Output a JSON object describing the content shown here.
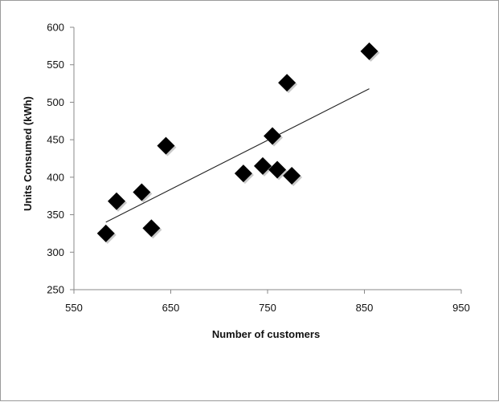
{
  "chart_data": {
    "type": "scatter",
    "title": "",
    "xlabel": "Number of customers",
    "ylabel": "Units Consumed (kWh)",
    "xlim": [
      550,
      950
    ],
    "ylim": [
      250,
      600
    ],
    "xticks": [
      "550",
      "650",
      "750",
      "850",
      "950"
    ],
    "yticks": [
      "250",
      "300",
      "350",
      "400",
      "450",
      "500",
      "550",
      "600"
    ],
    "grid": false,
    "legend": "none",
    "marker": "diamond",
    "marker_color": "#000000",
    "series": [
      {
        "points": [
          {
            "x": 583,
            "y": 325
          },
          {
            "x": 594,
            "y": 368
          },
          {
            "x": 620,
            "y": 380
          },
          {
            "x": 630,
            "y": 332
          },
          {
            "x": 645,
            "y": 442
          },
          {
            "x": 725,
            "y": 405
          },
          {
            "x": 745,
            "y": 415
          },
          {
            "x": 755,
            "y": 455
          },
          {
            "x": 760,
            "y": 410
          },
          {
            "x": 770,
            "y": 526
          },
          {
            "x": 775,
            "y": 402
          },
          {
            "x": 855,
            "y": 568
          }
        ]
      }
    ],
    "trendline": {
      "type": "linear",
      "x": [
        583,
        855
      ],
      "y": [
        340,
        518
      ]
    }
  }
}
